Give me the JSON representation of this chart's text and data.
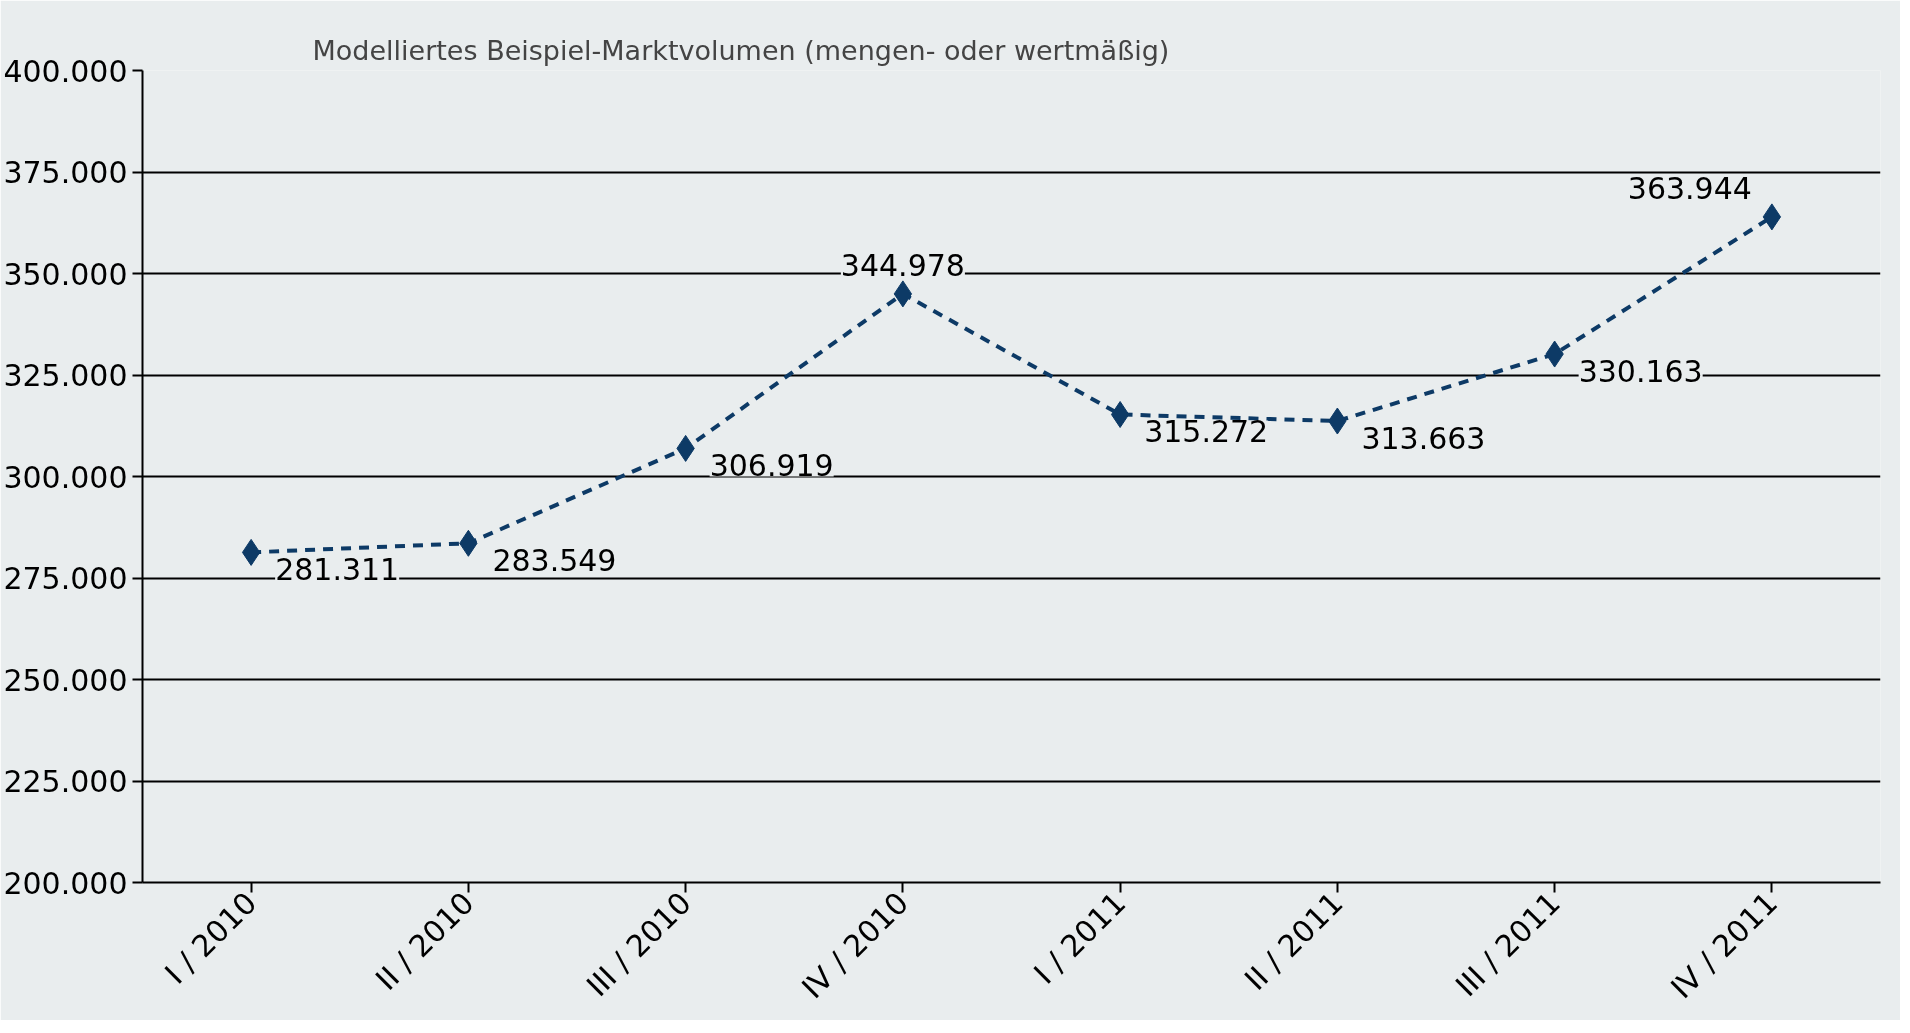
{
  "chart_data": {
    "type": "line",
    "title": "Modelliertes Beispiel-Marktvolumen (mengen- oder wertmäßig)",
    "categories": [
      "I / 2010",
      "II / 2010",
      "III / 2010",
      "IV / 2010",
      "I / 2011",
      "II / 2011",
      "III / 2011",
      "IV / 2011"
    ],
    "series": [
      {
        "color": "#0d3a66",
        "values": [
          281311,
          283549,
          306919,
          344978,
          315272,
          313663,
          330163,
          363944
        ],
        "value_labels": [
          "281.311",
          "283.549",
          "306.919",
          "344.978",
          "315.272",
          "313.663",
          "330.163",
          "363.944"
        ]
      }
    ],
    "ylim": [
      200000,
      400000
    ],
    "yticks": [
      {
        "value": 200000,
        "label": "200.000"
      },
      {
        "value": 225000,
        "label": "225.000"
      },
      {
        "value": 250000,
        "label": "250.000"
      },
      {
        "value": 275000,
        "label": "275.000"
      },
      {
        "value": 300000,
        "label": "300.000"
      },
      {
        "value": 325000,
        "label": "325.000"
      },
      {
        "value": 350000,
        "label": "350.000"
      },
      {
        "value": 375000,
        "label": "375.000"
      },
      {
        "value": 400000,
        "label": "400.000"
      }
    ],
    "grid": "y",
    "marker": "diamond",
    "line_style": "dashed"
  }
}
